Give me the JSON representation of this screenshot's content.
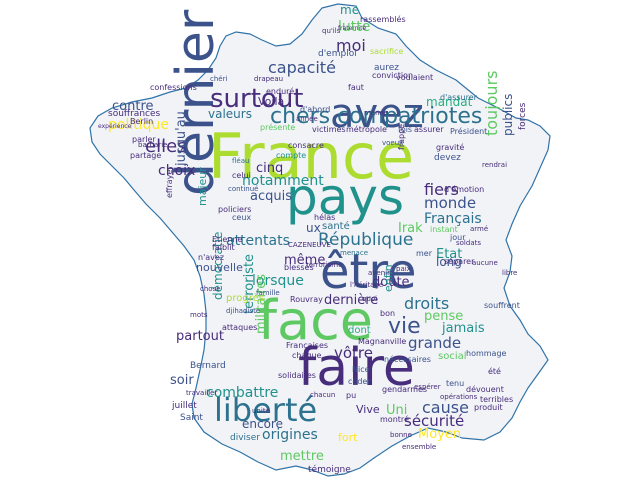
{
  "colors": {
    "map_fill": "#f2f3f7",
    "map_stroke": "#2f73a8",
    "palette": [
      "#440154",
      "#472d7b",
      "#3b528b",
      "#2c728e",
      "#21918c",
      "#28ae80",
      "#5ec962",
      "#addc30",
      "#fde725"
    ]
  },
  "words": {
    "france": "France",
    "pays": "pays",
    "avez": "avez",
    "dernier": "dernier",
    "etre": "être",
    "face": "face",
    "faire": "faire",
    "liberte": "liberté",
    "surtout": "surtout",
    "chers_compatriotes": "chers compatriotes",
    "capacite": "capacité",
    "moi": "moi",
    "lutte": "lutte",
    "me": "me",
    "elles": "elles",
    "politique": "politique",
    "contre": "contre",
    "choix": "choix",
    "valeurs": "valeurs",
    "voila": "Voilà",
    "notamment": "notamment",
    "cinq": "cinq",
    "acquis": "acquis",
    "jusqu_au": "jusqu'au",
    "attentats": "attentats",
    "republique": "République",
    "meme": "même",
    "lorsque": "lorsque",
    "fiers": "fiers",
    "monde": "monde",
    "francais": "Français",
    "toujours": "toujours",
    "publics": "publics",
    "irak": "Irak",
    "doute": "doute",
    "etat": "Etat",
    "long": "long",
    "vie": "vie",
    "pense": "pense",
    "droits": "droits",
    "derniere": "dernière",
    "grande": "grande",
    "jamais": "jamais",
    "votre": "vôtre",
    "cause": "cause",
    "securite": "sécurité",
    "moyen": "Moyen",
    "uni": "Uni",
    "combattre": "combattre",
    "soir": "soir",
    "partout": "partout",
    "terroriste": "terroriste",
    "militaires": "militaires",
    "democratie": "démocratie",
    "origines": "origines",
    "encore": "encore",
    "mettre": "mettre",
    "fort": "fort",
    "temoigne": "témoigne",
    "mandat": "mandat",
    "majeur": "majeur",
    "nouvelle": "nouvelle",
    "progres": "progrès",
    "vive": "Vive",
    "sante": "santé",
    "ux": "ux",
    "dont": "dont",
    "enfin": "enfin",
    "social": "social",
    "bernard": "Bernard",
    "juillet": "juillet",
    "saint": "Saint",
    "diviser": "diviser",
    "ete": "été",
    "drapeau": "drapeau",
    "qu_ils": "qu'ils",
    "rassemblés": "rassemblés",
    "sacrifice": "sacrifice",
    "d_emploi": "d'emploi",
    "aurez": "aurez",
    "conviction": "conviction",
    "voulaient": "voulaient",
    "d_abord": "d'abord",
    "d_assurer": "d'assurer",
    "assurer": "assurer",
    "president": "Président",
    "victimes": "victimes",
    "metropole": "métropole",
    "fois": "fois",
    "confessions": "confessions",
    "enduré": "enduré",
    "cheri": "chéri",
    "souffrances": "souffrances",
    "berlin": "Berlin",
    "presente": "présente",
    "consacre": "consacre",
    "compte": "compte",
    "gravite": "gravité",
    "forces": "forces",
    "devez": "devez",
    "d_emotion": "d'émotion",
    "instant": "instant",
    "jour": "jour",
    "separer": "séparer",
    "celui": "celui",
    "fileau": "fléau",
    "continue": "continué",
    "policiers": "policiers",
    "ceux": "ceux",
    "helas": "hélas",
    "cazeneuve": "CAZENEUVE",
    "etienne": "Etienne",
    "faiblit": "faiblit",
    "famille": "famille",
    "blesses": "blessés",
    "rouvray": "Rouvray",
    "attaques": "attaques",
    "djihadiste": "djihadiste",
    "magnanville": "Magnanville",
    "francaises": "Françaises",
    "nice": "Nice",
    "ceder": "céder",
    "gendarmes": "gendarmes",
    "necessaires": "nécessaires",
    "hommage": "hommage",
    "devouent": "dévouent",
    "terribles": "terribles",
    "produit": "produit",
    "tenu": "tenu",
    "montre": "montré",
    "menace": "menace",
    "mer": "mer",
    "chaque": "chaque",
    "solidaires": "solidaires",
    "pu": "pu",
    "parler": "parler",
    "effrayer": "effrayer",
    "partage": "partage",
    "heritage": "l'héritage",
    "souffrent": "souffrent",
    "operations": "opérations",
    "frappe": "frappé",
    "terrorisme": "terrorisme",
    "chose": "chose",
    "n_avez": "n'avez",
    "quoi": "quoi",
    "travailler": "travailler",
    "experience": "expérience",
    "esperer": "espérer",
    "rendrai": "rendrai",
    "menee": "menée",
    "bon": "bon",
    "arme": "armé",
    "faut": "faut",
    "aucune": "aucune",
    "voeux": "voeux",
    "libre": "libre",
    "mots": "mots",
    "barbarie": "barbarie",
    "bonne": "bonne",
    "unite": "unité",
    "soldats": "soldats",
    "ensemble": "ensemble",
    "fraternite": "fraternité",
    "annee": "année",
    "paix": "paix",
    "avenir": "avenir",
    "chacun": "chacun"
  }
}
